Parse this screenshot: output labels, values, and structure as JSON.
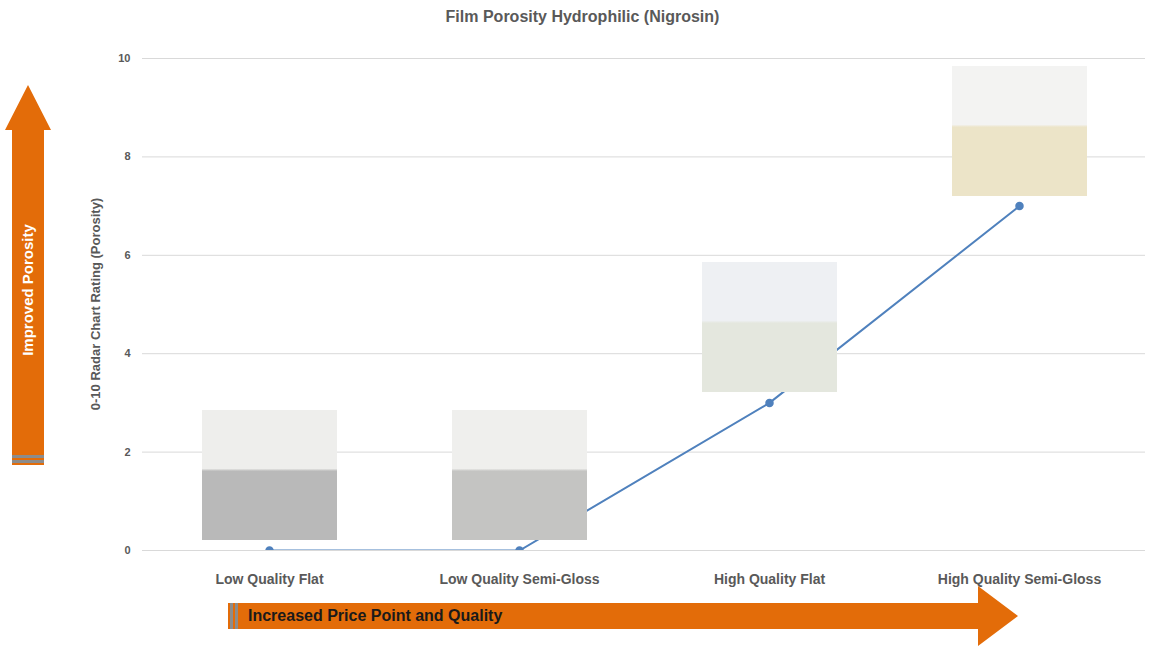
{
  "chart_data": {
    "type": "line",
    "title": "Film Porosity Hydrophilic (Nigrosin)",
    "ylabel": "0-10 Radar Chart Rating (Porosity)",
    "categories": [
      "Low Quality Flat",
      "Low Quality Semi-Gloss",
      "High Quality Flat",
      "High Quality Semi-Gloss"
    ],
    "values": [
      0,
      0,
      3,
      7
    ],
    "color": "#4f81bd",
    "marker": "circle",
    "ylim": [
      0,
      10
    ],
    "yticks": [
      0,
      2,
      4,
      6,
      8,
      10
    ],
    "grid": true,
    "annotations": [
      "Improved Porosity",
      "Increased Price Point and Quality"
    ]
  }
}
